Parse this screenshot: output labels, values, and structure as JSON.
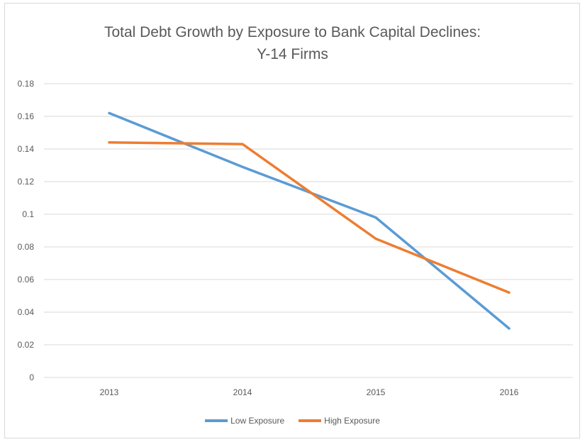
{
  "chart_data": {
    "type": "line",
    "title": "Total Debt Growth by Exposure to Bank Capital Declines:",
    "subtitle": "Y-14 Firms",
    "categories": [
      "2013",
      "2014",
      "2015",
      "2016"
    ],
    "ylim": [
      0,
      0.18
    ],
    "yticks": [
      "0",
      "0.02",
      "0.04",
      "0.06",
      "0.08",
      "0.1",
      "0.12",
      "0.14",
      "0.16",
      "0.18"
    ],
    "grid": true,
    "legend_position": "bottom",
    "series": [
      {
        "name": "Low Exposure",
        "color": "#5b9bd5",
        "values": [
          0.162,
          0.129,
          0.098,
          0.03
        ]
      },
      {
        "name": "High Exposure",
        "color": "#ed7d31",
        "values": [
          0.144,
          0.143,
          0.085,
          0.052
        ]
      }
    ]
  }
}
